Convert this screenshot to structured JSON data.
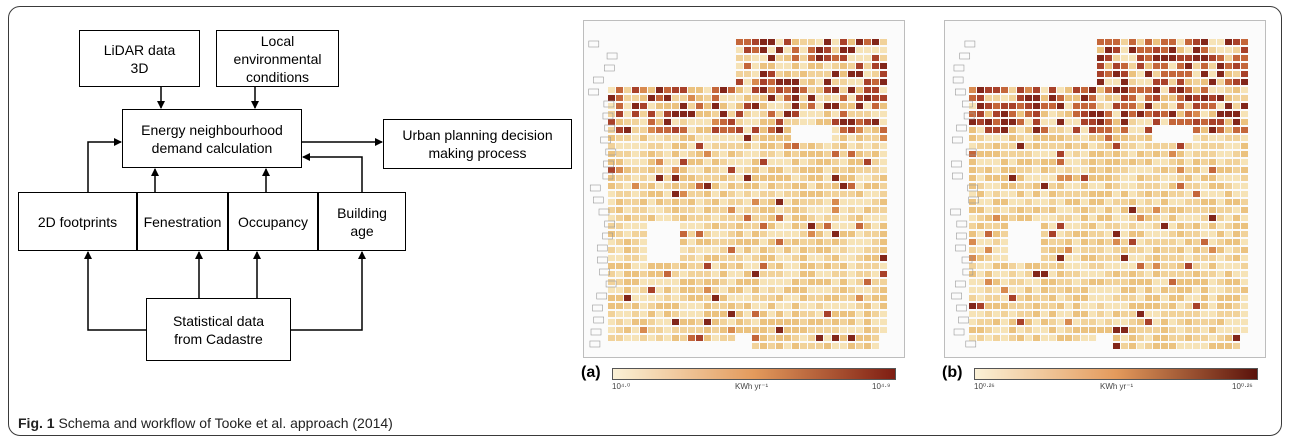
{
  "boxes": {
    "lidar": "LiDAR data\n3D",
    "local_env": "Local\nenvironmental\nconditions",
    "energy": "Energy neighbourhood\ndemand calculation",
    "urban": "Urban planning decision\nmaking process",
    "footprints": "2D footprints",
    "fenestration": "Fenestration",
    "occupancy": "Occupancy",
    "building_age": "Building\nage",
    "statistical": "Statistical data\nfrom Cadastre"
  },
  "panels": {
    "a": {
      "label": "(a)",
      "unit": "KWh yr⁻¹",
      "min": "10⁴·⁰",
      "max": "10⁴·⁹",
      "low_color": "#fbf1d6",
      "high_color": "#7e1d12"
    },
    "b": {
      "label": "(b)",
      "unit": "KWh yr⁻¹",
      "min": "10⁰·²⁶",
      "max": "10⁰·²⁶",
      "low_color": "#fbf1d6",
      "high_color": "#5a120b"
    }
  },
  "caption": {
    "fig": "Fig. 1",
    "text": "Schema and workflow of Tooke et al. approach (2014)"
  }
}
